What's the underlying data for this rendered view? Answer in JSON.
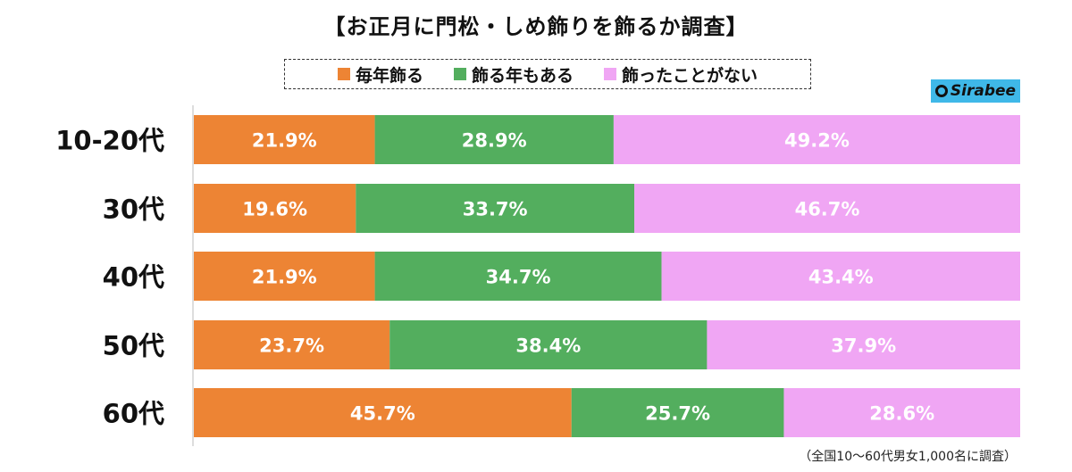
{
  "title": "【お正月に門松・しめ飾りを飾るか調査】",
  "logo": {
    "text": "Sirabee"
  },
  "note": "（全国10〜60代男女1,000名に調査）",
  "chart_data": {
    "type": "bar",
    "orientation": "horizontal",
    "stacked": true,
    "categories": [
      "10-20代",
      "30代",
      "40代",
      "50代",
      "60代"
    ],
    "series": [
      {
        "name": "毎年飾る",
        "color": "#ed8434",
        "values": [
          21.9,
          19.6,
          21.9,
          23.7,
          45.7
        ],
        "labels": [
          "21.9%",
          "19.6%",
          "21.9%",
          "23.7%",
          "45.7%"
        ]
      },
      {
        "name": "飾る年もある",
        "color": "#53ae5e",
        "values": [
          28.9,
          33.7,
          34.7,
          38.4,
          25.7
        ],
        "labels": [
          "28.9%",
          "33.7%",
          "34.7%",
          "38.4%",
          "25.7%"
        ]
      },
      {
        "name": "飾ったことがない",
        "color": "#f0a6f4",
        "values": [
          49.2,
          46.7,
          43.4,
          37.9,
          28.6
        ],
        "labels": [
          "49.2%",
          "46.7%",
          "43.4%",
          "37.9%",
          "28.6%"
        ]
      }
    ],
    "xlim": [
      0,
      100
    ],
    "legend": "top"
  }
}
